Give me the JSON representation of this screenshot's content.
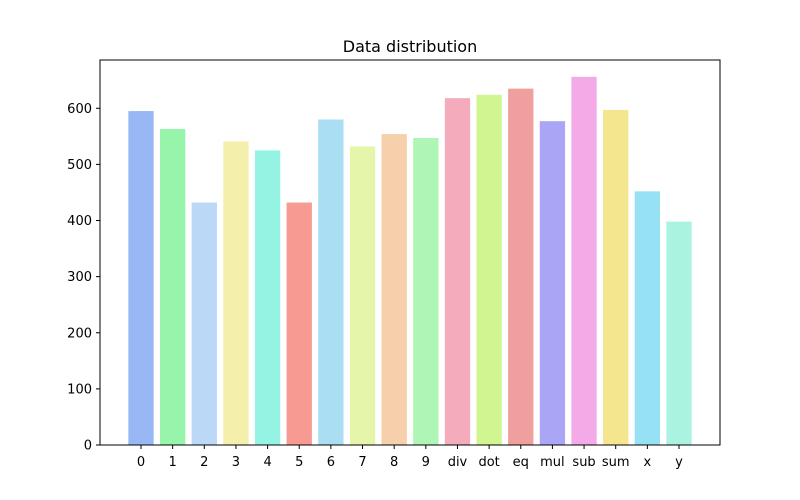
{
  "chart_data": {
    "type": "bar",
    "title": "Data distribution",
    "xlabel": "",
    "ylabel": "",
    "categories": [
      "0",
      "1",
      "2",
      "3",
      "4",
      "5",
      "6",
      "7",
      "8",
      "9",
      "div",
      "dot",
      "eq",
      "mul",
      "sub",
      "sum",
      "x",
      "y"
    ],
    "values": [
      595,
      563,
      432,
      541,
      525,
      432,
      580,
      532,
      554,
      547,
      618,
      624,
      635,
      577,
      656,
      597,
      452,
      398
    ],
    "colors": [
      "#97b8f5",
      "#97f5ab",
      "#bcd8f7",
      "#f4f0ab",
      "#95f3e4",
      "#f79a92",
      "#aadff3",
      "#e5f5a9",
      "#f5d0aa",
      "#aff5b6",
      "#f4abbc",
      "#d1f590",
      "#ef9f9d",
      "#aaa6f5",
      "#f4aae7",
      "#f4e68e",
      "#97e1f4",
      "#aaf3e0"
    ],
    "ylim": [
      0,
      686
    ],
    "yticks": [
      0,
      100,
      200,
      300,
      400,
      500,
      600
    ],
    "grid": false
  }
}
